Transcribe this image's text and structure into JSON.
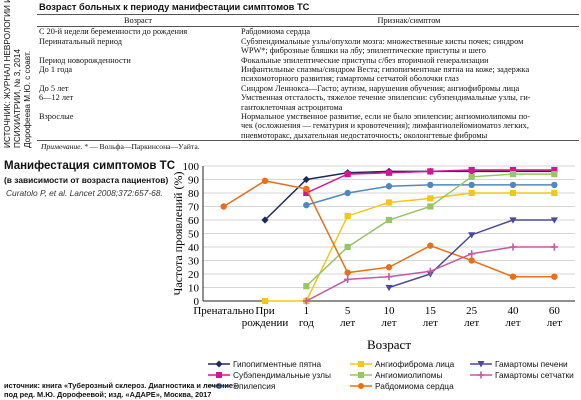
{
  "side_source": {
    "lines": [
      "ИСТОЧНИК: ЖУРНАЛ НЕВРОЛОГИИ И",
      "ПСИХИАТРИИ, № 3, 2014",
      "Дорофеева М.Ю. с соавт."
    ]
  },
  "table": {
    "title": "Возраст больных к периоду манифестации симптомов ТС",
    "headers": [
      "Возраст",
      "Признак/симптом"
    ],
    "rows": [
      {
        "age": [
          "С 20-й недели беременности до рождения"
        ],
        "symptom": [
          "Рабдомиома сердца"
        ]
      },
      {
        "age": [
          "Перинатальный период"
        ],
        "symptom": [
          "Субэпендимальные узлы/опухоли мозга: множественные кисты почек; синдром",
          "WPW*; фиброзные бляшки на лбу; эпилептические приступы и шего"
        ]
      },
      {
        "age": [
          "Период новорожденности"
        ],
        "symptom": [
          "Фокальные эпилептические приступы с/без вторичной генерализации"
        ]
      },
      {
        "age": [
          "До 1 года"
        ],
        "symptom": [
          "Инфантильные спазмы/синдром Веста; гипопигментные пятна на коже; задержка",
          "психомоторного развития; гамартомы сетчатой оболочки глаз"
        ]
      },
      {
        "age": [
          "До 5 лет"
        ],
        "symptom": [
          "Синдром Леннокса—Гасто; аутизм, нарушения обучения; ангиофибромы лица"
        ]
      },
      {
        "age": [
          "6—12 лет"
        ],
        "symptom": [
          "Умственная отсталость, тяжелое течение эпилепсии: субэпендимальные узлы, ги-",
          "гантоклеточная астроцитома"
        ]
      },
      {
        "age": [
          "Взрослые"
        ],
        "symptom": [
          "Нормальное умственное развитие, если не было эпилепсии; ангиомиолипомы по-",
          "чек (осложнения — гематурия и кровотечения); лимфангиолейомиоматоз легких,",
          "пневмоторакс, дыхательная недостаточность; околонгтевые фибромы"
        ]
      }
    ],
    "note_label": "Примечание.",
    "note_text": "* — Вольфа—Паркинсона—Уайта."
  },
  "chart_title": "Манифестация симптомов ТС",
  "chart_subtitle": "(в зависимости от возраста пациентов)",
  "chart_cite": "Curatolo P, et al. Lancet 2008;372:657-68.",
  "chart_data": {
    "type": "line",
    "ylabel": "Частота проявлений (%)",
    "xlabel": "Возраст",
    "ylim": [
      0,
      100
    ],
    "yticks": [
      0,
      10,
      20,
      30,
      40,
      50,
      60,
      70,
      80,
      90,
      100
    ],
    "categories": [
      [
        "Пренатально"
      ],
      [
        "При",
        "рождении"
      ],
      [
        "1",
        "год"
      ],
      [
        "5",
        "лет"
      ],
      [
        "10",
        "лет"
      ],
      [
        "15",
        "лет"
      ],
      [
        "25",
        "лет"
      ],
      [
        "40",
        "лет"
      ],
      [
        "60",
        "лет"
      ]
    ],
    "grid": "horizontal",
    "series": [
      {
        "name": "Гипопигментные пятна",
        "color": "#1f2a5c",
        "marker": "diamond",
        "values": [
          null,
          60,
          90,
          95,
          96,
          96,
          96,
          96,
          96
        ]
      },
      {
        "name": "Субэпендимальные узлы",
        "color": "#d6148f",
        "marker": "square",
        "values": [
          null,
          null,
          80,
          94,
          95,
          96,
          97,
          97,
          97
        ]
      },
      {
        "name": "Эпилепсия",
        "color": "#4f88c0",
        "marker": "circle",
        "values": [
          null,
          null,
          71,
          80,
          85,
          86,
          86,
          86,
          86
        ]
      },
      {
        "name": "Ангиофиброма лица",
        "color": "#f5c518",
        "marker": "square",
        "values": [
          null,
          0,
          0,
          63,
          73,
          76,
          80,
          80,
          80
        ]
      },
      {
        "name": "Ангиомиолипомы",
        "color": "#98c46a",
        "marker": "square",
        "values": [
          null,
          null,
          11,
          40,
          60,
          70,
          92,
          94,
          94
        ]
      },
      {
        "name": "Рабдомиома сердца",
        "color": "#e8701a",
        "marker": "circle",
        "values": [
          70,
          89,
          83,
          21,
          25,
          41,
          30,
          18,
          18
        ]
      },
      {
        "name": "Гамартомы печени",
        "color": "#4a4a9a",
        "marker": "triangle-down",
        "values": [
          null,
          null,
          null,
          null,
          10,
          20,
          49,
          60,
          60
        ]
      },
      {
        "name": "Гамартомы сетчатки",
        "color": "#c35aa5",
        "marker": "plus",
        "values": [
          null,
          null,
          0,
          16,
          18,
          22,
          35,
          40,
          40
        ]
      }
    ]
  },
  "bottom_source": [
    "источник: книга «Туберозный склероз. Диагностика и лечение»",
    "под ред. М.Ю. Дорофеевой; изд. «АДАРЕ», Москва, 2017"
  ]
}
